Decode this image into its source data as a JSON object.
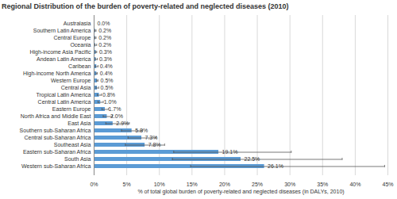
{
  "chart_data": {
    "type": "bar",
    "orientation": "horizontal",
    "title": "Regional Distribution of the burden of poverty-related and neglected diseases (2010)",
    "x_label": "% of total global burden of poverty-related and neglected diseases (in DALYs, 2010)",
    "categories": [
      "Australasia",
      "Southern Latin America",
      "Central Europe",
      "Oceania",
      "High-income Asia Pacific",
      "Andean Latin America",
      "Caribean",
      "High-income North America",
      "Western Europe",
      "Central Asia",
      "Tropical Latin America",
      "Central Latin America",
      "Eastern Europe",
      "North Africa and Middle East",
      "East Asia",
      "Southern sub-Saharan Africa",
      "Central sub-Saharan Africa",
      "Southeast Asia",
      "Eastern sub-Saharan Africa",
      "South Asia",
      "Western sub-Saharan Africa"
    ],
    "values": [
      0.0,
      0.2,
      0.2,
      0.2,
      0.3,
      0.3,
      0.4,
      0.4,
      0.5,
      0.5,
      0.8,
      1.0,
      1.7,
      2.0,
      2.9,
      5.8,
      7.3,
      7.8,
      19.1,
      22.5,
      26.1
    ],
    "value_labels": [
      "0.0%",
      "0.2%",
      "0.2%",
      "0.2%",
      "0.3%",
      "0.3%",
      "0.4%",
      "0.4%",
      "0.5%",
      "0.5%",
      "0.8%",
      "1.0%",
      "1.7%",
      "2.0%",
      "2.9%",
      "5.8%",
      "7.3%",
      "7.8%",
      "19.1%",
      "22.5%",
      "26.1%"
    ],
    "error_low": [
      0.0,
      0.1,
      0.1,
      0.1,
      0.2,
      0.2,
      0.2,
      0.3,
      0.4,
      0.3,
      0.5,
      0.6,
      1.2,
      1.4,
      1.8,
      4.2,
      5.2,
      4.8,
      12.2,
      12.0,
      14.8
    ],
    "error_high": [
      0.0,
      0.3,
      0.3,
      0.4,
      0.4,
      0.5,
      0.6,
      0.5,
      0.6,
      0.7,
      1.1,
      1.4,
      2.2,
      2.8,
      5.4,
      7.4,
      9.5,
      10.8,
      30.2,
      38.0,
      44.5
    ],
    "color": "#5b9bd5",
    "data_labels": true,
    "grid": true,
    "xlim": [
      0,
      45
    ],
    "xticks": [
      {
        "value": 0,
        "label": "0%"
      },
      {
        "value": 5,
        "label": "5%"
      },
      {
        "value": 10,
        "label": "10%"
      },
      {
        "value": 15,
        "label": "15%"
      },
      {
        "value": 20,
        "label": "20%"
      },
      {
        "value": 25,
        "label": "25%"
      },
      {
        "value": 30,
        "label": "30%"
      },
      {
        "value": 35,
        "label": "35%"
      },
      {
        "value": 40,
        "label": "40%"
      },
      {
        "value": 45,
        "label": "45%"
      }
    ]
  }
}
